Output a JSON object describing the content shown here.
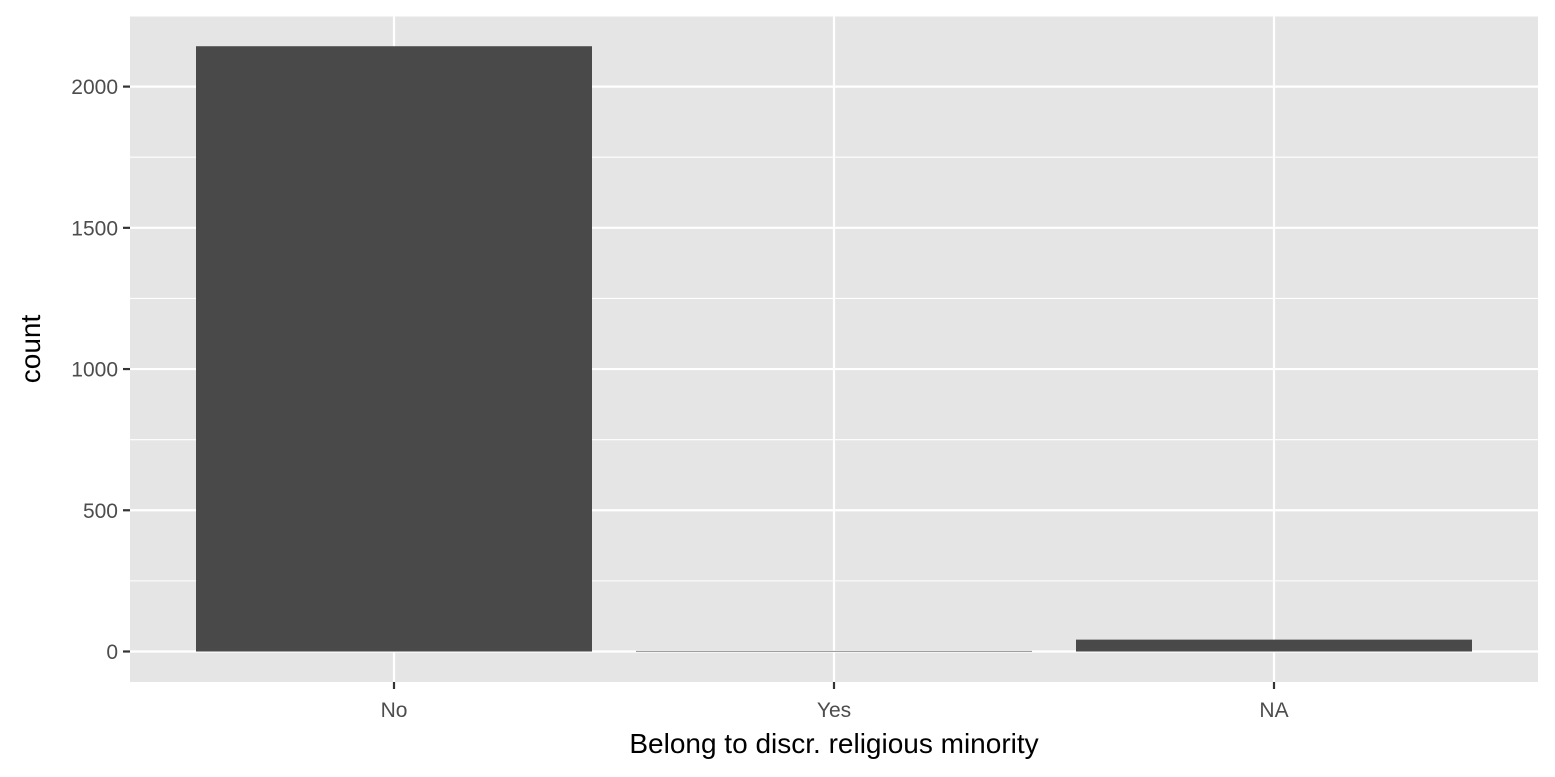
{
  "chart_data": {
    "type": "bar",
    "categories": [
      "No",
      "Yes",
      "NA"
    ],
    "values": [
      2143,
      2,
      42
    ],
    "title": "",
    "xlabel": "Belong to discr. religious minority",
    "ylabel": "count",
    "ylim": [
      -108,
      2250
    ],
    "yticks": [
      0,
      500,
      1000,
      1500,
      2000
    ],
    "yticks_minor": [
      250,
      750,
      1250,
      1750,
      2250
    ],
    "grid": true,
    "legend": "none",
    "colors": {
      "panel": "#E5E5E5",
      "grid": "#FFFFFF",
      "bar": "#494949",
      "tick_text": "#4D4D4D",
      "tick_mark": "#333333",
      "axis_title": "#000000"
    }
  }
}
